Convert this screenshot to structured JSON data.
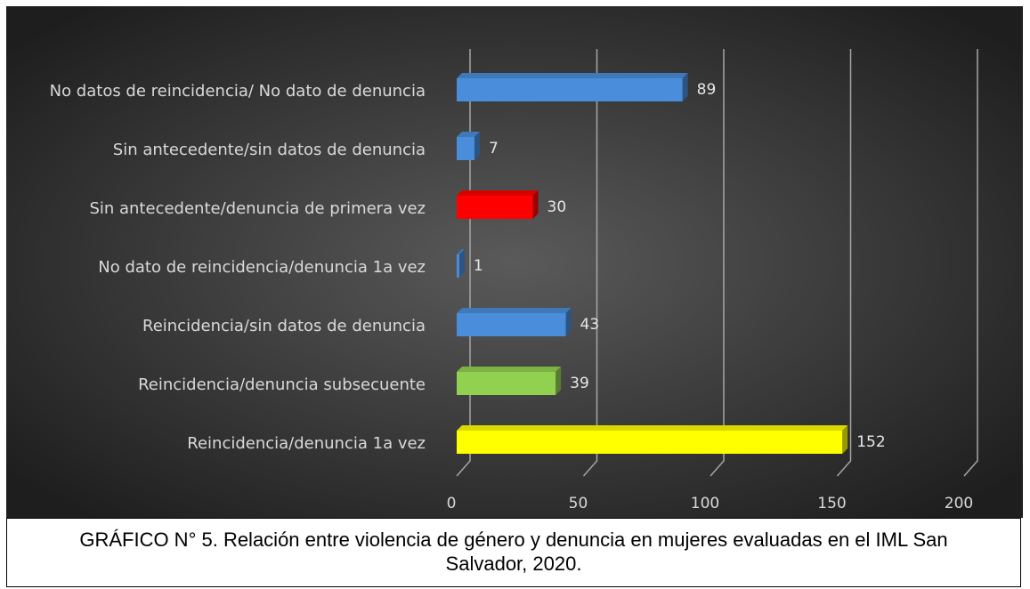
{
  "chart_data": {
    "type": "bar",
    "orientation": "horizontal",
    "categories": [
      "No datos de reincidencia/ No dato de denuncia",
      "Sin antecedente/sin datos de denuncia",
      "Sin antecedente/denuncia de primera vez",
      "No dato de reincidencia/denuncia 1a vez",
      "Reincidencia/sin datos de denuncia",
      "Reincidencia/denuncia subsecuente",
      "Reincidencia/denuncia 1a vez"
    ],
    "values": [
      89,
      7,
      30,
      1,
      43,
      39,
      152
    ],
    "colors": [
      "#4a8edb",
      "#4a8edb",
      "#ff0000",
      "#4a8edb",
      "#4a8edb",
      "#92d050",
      "#ffff00"
    ],
    "xlim": [
      0,
      200
    ],
    "xticks": [
      0,
      50,
      100,
      150,
      200
    ],
    "grid": true,
    "caption": "GRÁFICO N° 5. Relación entre violencia de género y denuncia en mujeres evaluadas en el IML San Salvador, 2020."
  }
}
